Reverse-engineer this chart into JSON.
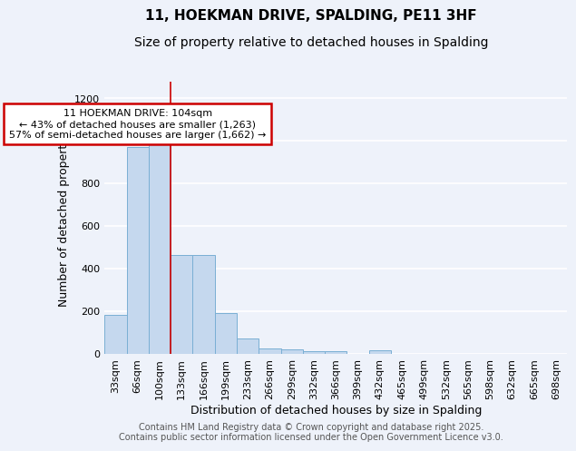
{
  "title1": "11, HOEKMAN DRIVE, SPALDING, PE11 3HF",
  "title2": "Size of property relative to detached houses in Spalding",
  "xlabel": "Distribution of detached houses by size in Spalding",
  "ylabel": "Number of detached properties",
  "categories": [
    "33sqm",
    "66sqm",
    "100sqm",
    "133sqm",
    "166sqm",
    "199sqm",
    "233sqm",
    "266sqm",
    "299sqm",
    "332sqm",
    "366sqm",
    "399sqm",
    "432sqm",
    "465sqm",
    "499sqm",
    "532sqm",
    "565sqm",
    "598sqm",
    "632sqm",
    "665sqm",
    "698sqm"
  ],
  "values": [
    180,
    970,
    1010,
    465,
    465,
    190,
    70,
    25,
    18,
    10,
    10,
    0,
    14,
    0,
    0,
    0,
    0,
    0,
    0,
    0,
    0
  ],
  "bar_color": "#c5d8ee",
  "bar_edge_color": "#7aafd4",
  "red_line_x": 2.5,
  "annotation_line1": "11 HOEKMAN DRIVE: 104sqm",
  "annotation_line2": "← 43% of detached houses are smaller (1,263)",
  "annotation_line3": "57% of semi-detached houses are larger (1,662) →",
  "annotation_box_color": "#ffffff",
  "annotation_box_edge_color": "#cc0000",
  "ylim": [
    0,
    1280
  ],
  "yticks": [
    0,
    200,
    400,
    600,
    800,
    1000,
    1200
  ],
  "footer_text": "Contains HM Land Registry data © Crown copyright and database right 2025.\nContains public sector information licensed under the Open Government Licence v3.0.",
  "bg_color": "#eef2fa",
  "grid_color": "#ffffff",
  "title1_fontsize": 11,
  "title2_fontsize": 10,
  "axis_label_fontsize": 9,
  "tick_fontsize": 8,
  "footer_fontsize": 7,
  "annotation_fontsize": 8
}
